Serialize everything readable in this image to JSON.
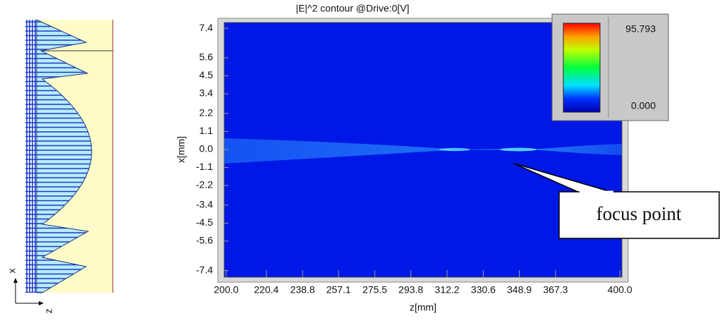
{
  "chart_data": {
    "type": "contour",
    "title": "|E|^2 contour @Drive:0[V]",
    "xlabel": "z[mm]",
    "ylabel": "x[mm]",
    "xlim": [
      199,
      401
    ],
    "xticks": [
      {
        "value": 200,
        "label": "200.0"
      },
      220.4,
      238.8,
      257.1,
      275.5,
      293.8,
      312.2,
      330.6,
      348.9,
      367.3,
      {
        "value": 400,
        "label": "400.0"
      }
    ],
    "ylim": [
      -7.8,
      7.75
    ],
    "yticks": [
      7.4,
      5.6,
      4.5,
      3.4,
      2.2,
      1.1,
      {
        "value": 0,
        "label": "0.0"
      },
      -1.1,
      -2.2,
      -3.4,
      -4.5,
      -5.6,
      -7.4
    ],
    "background_color": "#0018e6",
    "colorbar": {
      "max": 95.793,
      "min": {
        "value": 0,
        "label": "0.000"
      }
    },
    "annotation": {
      "text": "focus point",
      "z": 346,
      "x": -0.85
    },
    "diagram": {
      "x_label": "x",
      "z_label": "z"
    }
  }
}
